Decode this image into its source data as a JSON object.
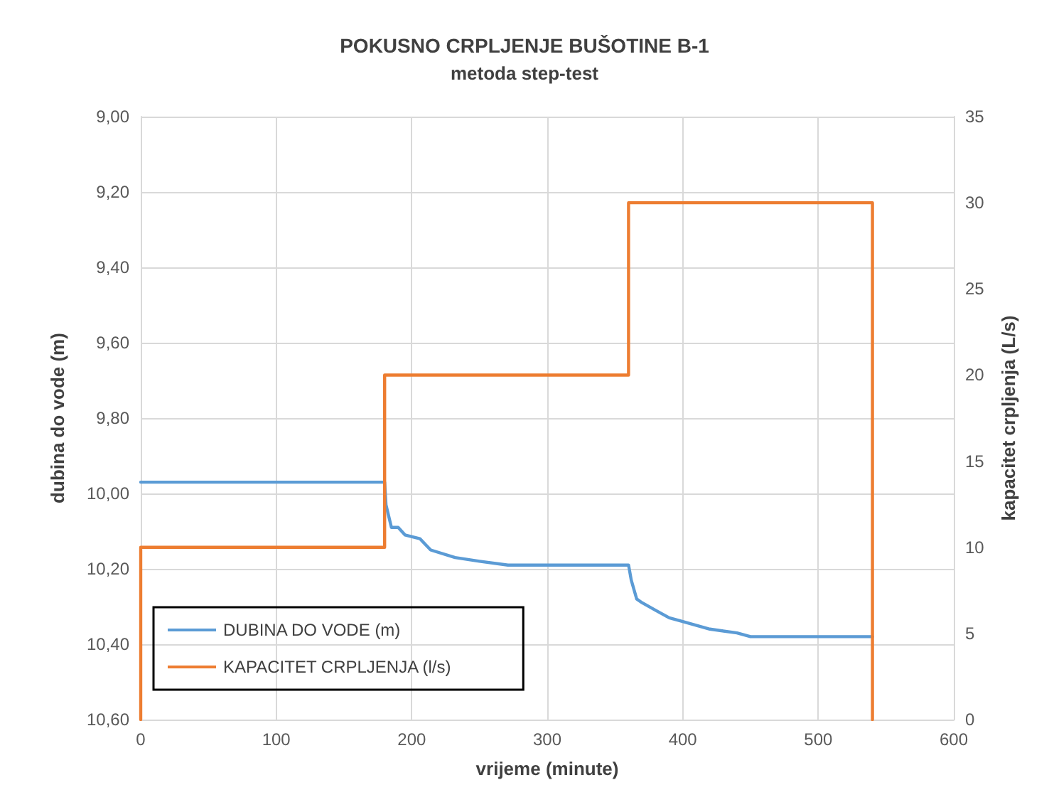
{
  "chart_data": {
    "type": "line",
    "title": "POKUSNO CRPLJENJE BUŠOTINE B-1",
    "subtitle": "metoda step-test",
    "xlabel": "vrijeme (minute)",
    "ylabel": "dubina do vode (m)",
    "y2label": "kapacitet crpljenja (L/s)",
    "series": [
      {
        "name": "DUBINA DO VODE (m)",
        "color": "#5b9bd5",
        "x": [
          0,
          180,
          181,
          185,
          190,
          195,
          206,
          214,
          232,
          250,
          271,
          360,
          362,
          366,
          370,
          380,
          390,
          400,
          420,
          440,
          450,
          540
        ],
        "values": [
          9.97,
          9.97,
          10.03,
          10.09,
          10.09,
          10.11,
          10.12,
          10.15,
          10.17,
          10.18,
          10.19,
          10.19,
          10.23,
          10.28,
          10.29,
          10.31,
          10.33,
          10.34,
          10.36,
          10.37,
          10.38,
          10.38
        ]
      },
      {
        "name": "KAPACITET CRPLJENJA (l/s)",
        "color": "#ed7d31",
        "axis": "y2",
        "x": [
          0,
          0,
          180,
          180,
          360,
          360,
          540,
          540
        ],
        "values": [
          0,
          10,
          10,
          20,
          20,
          30,
          30,
          0
        ]
      }
    ],
    "xlim": [
      0,
      600
    ],
    "xticks": [
      0,
      100,
      200,
      300,
      400,
      500,
      600
    ],
    "ylim": [
      10.6,
      9.0
    ],
    "yticks": [
      {
        "value": 9.0,
        "label": "9,00"
      },
      {
        "value": 9.2,
        "label": "9,20"
      },
      {
        "value": 9.4,
        "label": "9,40"
      },
      {
        "value": 9.6,
        "label": "9,60"
      },
      {
        "value": 9.8,
        "label": "9,80"
      },
      {
        "value": 10.0,
        "label": "10,00"
      },
      {
        "value": 10.2,
        "label": "10,20"
      },
      {
        "value": 10.4,
        "label": "10,40"
      },
      {
        "value": 10.6,
        "label": "10,60"
      }
    ],
    "y2lim": [
      0,
      35
    ],
    "y2ticks": [
      0,
      5,
      10,
      15,
      20,
      25,
      30,
      35
    ],
    "grid": true,
    "legend": "bottom left",
    "marker": "none",
    "line_style": "solid"
  }
}
